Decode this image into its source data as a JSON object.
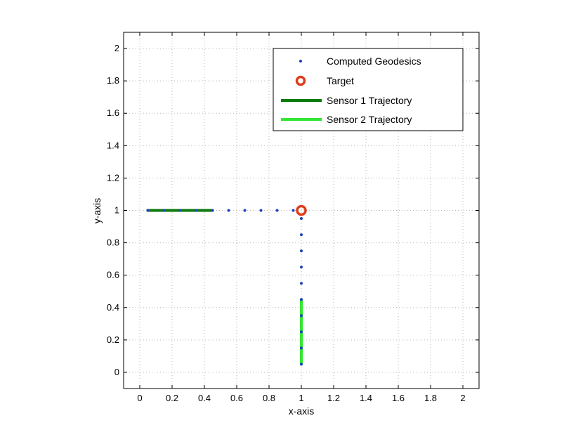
{
  "chart_data": {
    "type": "scatter",
    "title": "",
    "xlabel": "x-axis",
    "ylabel": "y-axis",
    "xlim": [
      -0.1,
      2.1
    ],
    "ylim": [
      -0.1,
      2.1
    ],
    "xticks": [
      "0",
      "0.2",
      "0.4",
      "0.6",
      "0.8",
      "1",
      "1.2",
      "1.4",
      "1.6",
      "1.8",
      "2"
    ],
    "yticks": [
      "0",
      "0.2",
      "0.4",
      "0.6",
      "0.8",
      "1",
      "1.2",
      "1.4",
      "1.6",
      "1.8",
      "2"
    ],
    "grid": true,
    "legend_position": "top-right",
    "series": [
      {
        "name": "Computed Geodesics",
        "style": "dots",
        "color": "#1f3fbf",
        "points": [
          [
            0.05,
            1
          ],
          [
            0.15,
            1
          ],
          [
            0.25,
            1
          ],
          [
            0.35,
            1
          ],
          [
            0.45,
            1
          ],
          [
            0.55,
            1
          ],
          [
            0.65,
            1
          ],
          [
            0.75,
            1
          ],
          [
            0.85,
            1
          ],
          [
            0.95,
            1
          ],
          [
            1,
            0.05
          ],
          [
            1,
            0.15
          ],
          [
            1,
            0.25
          ],
          [
            1,
            0.35
          ],
          [
            1,
            0.45
          ],
          [
            1,
            0.55
          ],
          [
            1,
            0.65
          ],
          [
            1,
            0.75
          ],
          [
            1,
            0.85
          ],
          [
            1,
            0.95
          ]
        ]
      },
      {
        "name": "Target",
        "style": "circle",
        "color": "#e03c1c",
        "points": [
          [
            1,
            1
          ]
        ]
      },
      {
        "name": "Sensor 1 Trajectory",
        "style": "line",
        "color": "#0a7a0a",
        "points": [
          [
            0.05,
            1
          ],
          [
            0.45,
            1
          ]
        ]
      },
      {
        "name": "Sensor 2 Trajectory",
        "style": "line",
        "color": "#33e633",
        "points": [
          [
            1,
            0.05
          ],
          [
            1,
            0.45
          ]
        ]
      }
    ]
  }
}
